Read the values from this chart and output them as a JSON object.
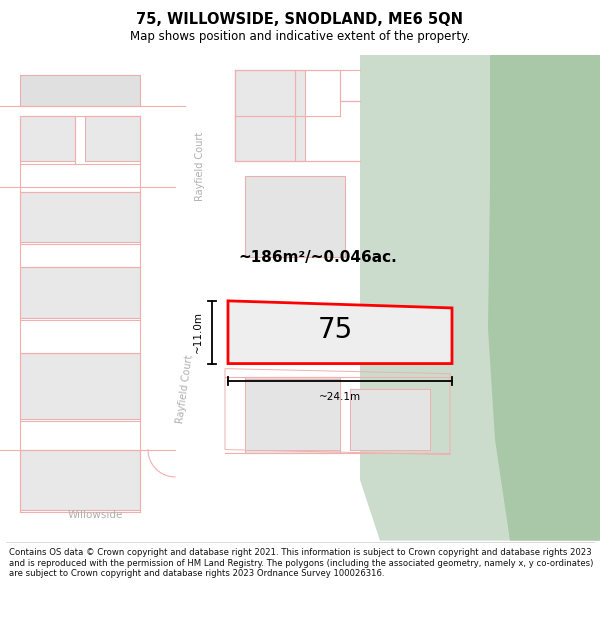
{
  "title": "75, WILLOWSIDE, SNODLAND, ME6 5QN",
  "subtitle": "Map shows position and indicative extent of the property.",
  "footer": "Contains OS data © Crown copyright and database right 2021. This information is subject to Crown copyright and database rights 2023 and is reproduced with the permission of HM Land Registry. The polygons (including the associated geometry, namely x, y co-ordinates) are subject to Crown copyright and database rights 2023 Ordnance Survey 100026316.",
  "area_label": "~186m²/~0.046ac.",
  "width_label": "~24.1m",
  "height_label": "~11.0m",
  "plot_number": "75",
  "map_bg": "#ffffff",
  "building_fill": "#e8e8e8",
  "building_stroke": "#e8b0b0",
  "green_fill_light": "#d0e0d0",
  "green_fill_dark": "#b8d4b8",
  "highlight_stroke": "#ff0000",
  "highlight_fill": "#eeeeee",
  "road_label_color": "#b0b0b0",
  "text_color": "#000000",
  "road_line_color": "#f0b0b0"
}
